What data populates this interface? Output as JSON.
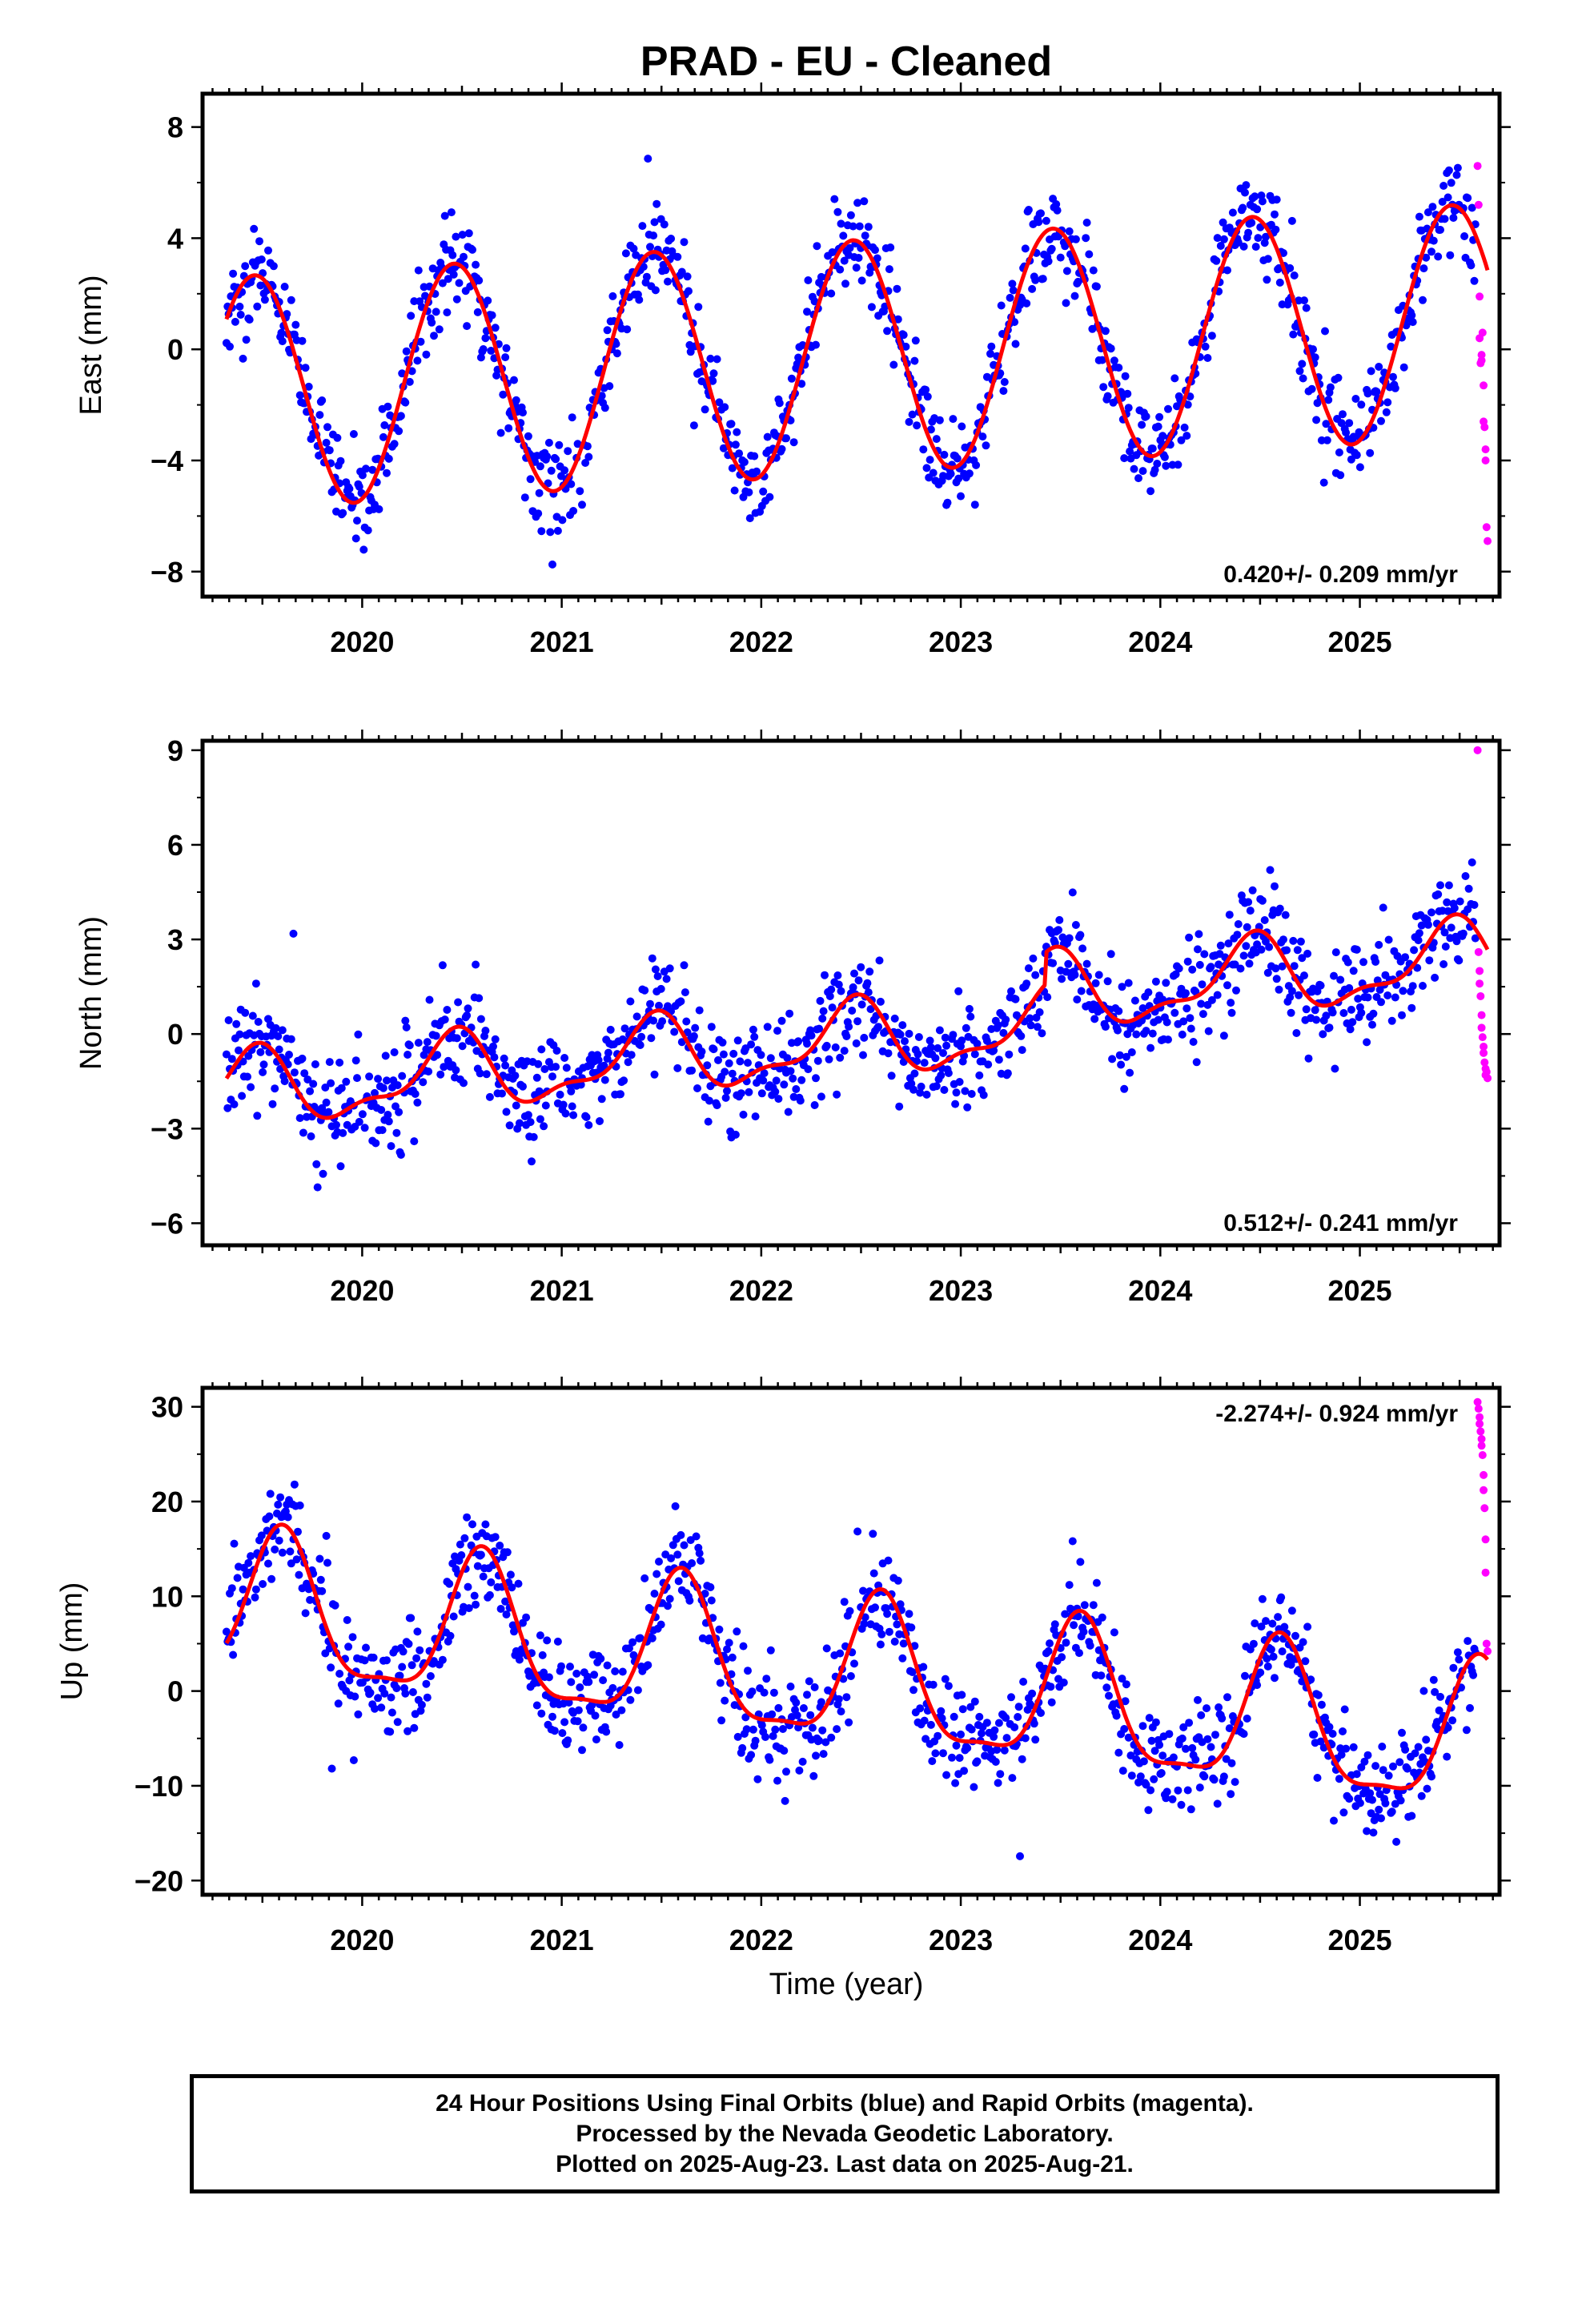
{
  "figure": {
    "title": "PRAD  - EU - Cleaned",
    "xlabel": "Time (year)",
    "footer_lines": [
      "24 Hour Positions Using Final Orbits (blue) and Rapid Orbits (magenta).",
      "Processed by the Nevada Geodetic Laboratory.",
      "Plotted on 2025-Aug-23. Last data on 2025-Aug-21."
    ]
  },
  "colors": {
    "final_orbits": "#0000ff",
    "rapid_orbits": "#ff00ff",
    "model_fit": "#ff0000",
    "frame": "#000000"
  },
  "chart_data": [
    {
      "type": "scatter",
      "ylabel": "East (mm)",
      "rate_label": "0.420+/- 0.209 mm/yr",
      "rate_position": "bottom-right",
      "xlim": [
        2019.2,
        2025.7
      ],
      "ylim": [
        -8.9,
        9.2
      ],
      "xticks": [
        2020,
        2021,
        2022,
        2023,
        2024,
        2025
      ],
      "yticks": [
        -8,
        -4,
        0,
        4,
        8
      ],
      "ytick_labels": [
        "−8",
        "−4",
        "0",
        "4",
        "8"
      ],
      "grid": false,
      "series": [
        {
          "name": "Final Orbits (blue)",
          "kind": "points",
          "start": 2019.32,
          "end": 2025.58,
          "step": 0.0055,
          "model": {
            "trend": 0.42,
            "anchor": 2022.4,
            "offset": -0.3,
            "harmonics": [
              {
                "period": 1,
                "amp": 4.2,
                "peak": 2019.46
              }
            ]
          },
          "scatter": 1.1
        },
        {
          "name": "Rapid Orbits (magenta)",
          "kind": "points",
          "x": [
            2025.59,
            2025.595,
            2025.6,
            2025.6,
            2025.605,
            2025.61,
            2025.61,
            2025.615,
            2025.62,
            2025.62,
            2025.625,
            2025.63,
            2025.63,
            2025.635,
            2025.64
          ],
          "y": [
            6.6,
            5.2,
            1.9,
            0.4,
            -0.5,
            -0.4,
            -0.2,
            0.6,
            -1.3,
            -2.6,
            -2.8,
            -3.6,
            -4.0,
            -6.4,
            -6.9
          ]
        },
        {
          "name": "Model fit",
          "kind": "line",
          "start": 2019.32,
          "end": 2025.64,
          "step": 0.01,
          "model": {
            "trend": 0.42,
            "anchor": 2022.4,
            "offset": -0.3,
            "harmonics": [
              {
                "period": 1,
                "amp": 4.2,
                "peak": 2019.46
              }
            ]
          }
        }
      ]
    },
    {
      "type": "scatter",
      "ylabel": "North (mm)",
      "rate_label": "0.512+/- 0.241 mm/yr",
      "rate_position": "bottom-right",
      "xlim": [
        2019.2,
        2025.7
      ],
      "ylim": [
        -6.7,
        9.3
      ],
      "xticks": [
        2020,
        2021,
        2022,
        2023,
        2024,
        2025
      ],
      "yticks": [
        -6,
        -3,
        0,
        3,
        6,
        9
      ],
      "ytick_labels": [
        "−6",
        "−3",
        "0",
        "3",
        "6",
        "9"
      ],
      "grid": false,
      "series": [
        {
          "name": "Final Orbits (blue)",
          "kind": "points",
          "start": 2019.32,
          "end": 2025.58,
          "step": 0.0055,
          "model": {
            "trend": 0.512,
            "anchor": 2022.4,
            "offset": -0.3,
            "harmonics": [
              {
                "period": 1,
                "amp": 1.1,
                "peak": 2020.45
              },
              {
                "period": 0.5,
                "amp": 0.45,
                "peak": 2020.0
              }
            ],
            "steps": [
              {
                "at": 2023.42,
                "size": 1.0
              }
            ]
          },
          "scatter": 1.05
        },
        {
          "name": "Rapid Orbits (magenta)",
          "kind": "points",
          "x": [
            2025.59,
            2025.595,
            2025.6,
            2025.6,
            2025.605,
            2025.61,
            2025.61,
            2025.615,
            2025.62,
            2025.62,
            2025.625,
            2025.63,
            2025.63,
            2025.635,
            2025.64
          ],
          "y": [
            9.0,
            2.6,
            2.0,
            1.6,
            1.2,
            0.6,
            0.2,
            -0.1,
            -0.4,
            -0.6,
            -0.9,
            -1.1,
            -1.3,
            -1.2,
            -1.4
          ]
        },
        {
          "name": "Model fit",
          "kind": "line",
          "start": 2019.32,
          "end": 2025.64,
          "step": 0.01,
          "model": {
            "trend": 0.512,
            "anchor": 2022.4,
            "offset": -0.3,
            "harmonics": [
              {
                "period": 1,
                "amp": 1.1,
                "peak": 2020.45
              },
              {
                "period": 0.5,
                "amp": 0.45,
                "peak": 2020.0
              }
            ],
            "steps": [
              {
                "at": 2023.42,
                "size": 1.0
              }
            ]
          }
        }
      ]
    },
    {
      "type": "scatter",
      "ylabel": "Up (mm)",
      "rate_label": "-2.274+/- 0.924 mm/yr",
      "rate_position": "top-right",
      "xlim": [
        2019.2,
        2025.7
      ],
      "ylim": [
        -21.5,
        32.0
      ],
      "xticks": [
        2020,
        2021,
        2022,
        2023,
        2024,
        2025
      ],
      "yticks": [
        -20,
        -10,
        0,
        10,
        20,
        30
      ],
      "ytick_labels": [
        "−20",
        "−10",
        "0",
        "10",
        "20",
        "30"
      ],
      "grid": false,
      "series": [
        {
          "name": "Final Orbits (blue)",
          "kind": "points",
          "start": 2019.32,
          "end": 2025.58,
          "step": 0.0055,
          "model": {
            "trend": -2.274,
            "anchor": 2022.4,
            "offset": 1.5,
            "harmonics": [
              {
                "period": 1,
                "amp": 7.5,
                "peak": 2019.6
              },
              {
                "period": 0.5,
                "amp": 2.2,
                "peak": 2019.6
              }
            ]
          },
          "scatter": 3.6
        },
        {
          "name": "Rapid Orbits (magenta)",
          "kind": "points",
          "x": [
            2025.59,
            2025.595,
            2025.6,
            2025.6,
            2025.605,
            2025.61,
            2025.61,
            2025.615,
            2025.62,
            2025.62,
            2025.625,
            2025.63,
            2025.63,
            2025.635,
            2025.64
          ],
          "y": [
            30.5,
            29.8,
            28.9,
            28.2,
            27.4,
            26.6,
            25.9,
            24.9,
            22.8,
            21.2,
            19.3,
            16.0,
            12.5,
            5.0,
            4.2
          ]
        },
        {
          "name": "Model fit",
          "kind": "line",
          "start": 2019.32,
          "end": 2025.64,
          "step": 0.01,
          "model": {
            "trend": -2.274,
            "anchor": 2022.4,
            "offset": 1.5,
            "harmonics": [
              {
                "period": 1,
                "amp": 7.5,
                "peak": 2019.6
              },
              {
                "period": 0.5,
                "amp": 2.2,
                "peak": 2019.6
              }
            ]
          }
        }
      ]
    }
  ]
}
